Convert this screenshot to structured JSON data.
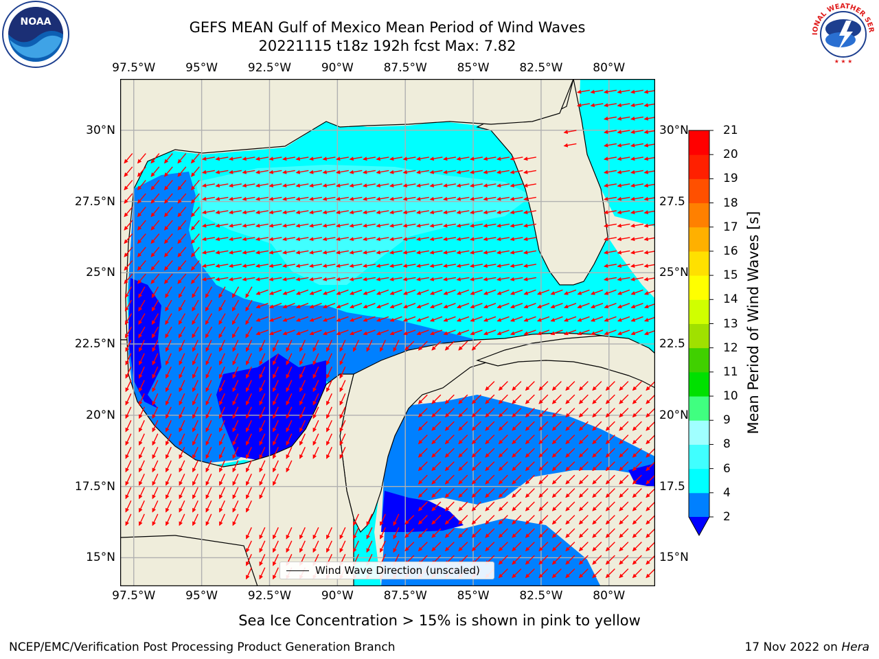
{
  "title": {
    "line1": "GEFS MEAN Gulf of Mexico Mean Period of Wind Waves",
    "line2": "20221115 t18z 192h fcst   Max: 7.82"
  },
  "logos": {
    "left": {
      "name": "noaa-logo",
      "text": "NOAA"
    },
    "right": {
      "name": "nws-logo",
      "text": "NATIONAL WEATHER SERVICE"
    }
  },
  "axes": {
    "lon_ticks": [
      "97.5°W",
      "95°W",
      "92.5°W",
      "90°W",
      "87.5°W",
      "85°W",
      "82.5°W",
      "80°W"
    ],
    "lon_values": [
      -97.5,
      -95,
      -92.5,
      -90,
      -87.5,
      -85,
      -82.5,
      -80
    ],
    "lat_ticks_left": [
      "30°N",
      "27.5°N",
      "25°N",
      "22.5°N",
      "20°N",
      "17.5°N",
      "15°N"
    ],
    "lat_ticks_right": [
      "30°N",
      "27.5",
      "25°N",
      "22.5",
      "20°N",
      "17.5",
      "15°N"
    ],
    "lat_values": [
      30,
      27.5,
      25,
      22.5,
      20,
      17.5,
      15
    ],
    "lon_range": [
      -98,
      -78.3
    ],
    "lat_range": [
      14,
      31.8
    ],
    "grid": true
  },
  "legend": {
    "label": "Wind Wave Direction (unscaled)"
  },
  "colorbar": {
    "title": "Mean Period of Wind Waves [s]",
    "ticks": [
      "21",
      "20",
      "19",
      "18",
      "17",
      "16",
      "15",
      "14",
      "13",
      "12",
      "11",
      "10",
      "9",
      "8",
      "6",
      "4",
      "2"
    ],
    "colors": [
      "#0000ff",
      "#0080ff",
      "#00ffff",
      "#40ffff",
      "#a0ffff",
      "#40ff80",
      "#00e000",
      "#40d000",
      "#a0e000",
      "#d0ff00",
      "#ffff00",
      "#ffe000",
      "#ffb000",
      "#ff8000",
      "#ff5000",
      "#ff2000",
      "#ff0000"
    ]
  },
  "colors": {
    "land": "#efeddb",
    "open_sea": "#00ffff",
    "light_sea": "#40ffff",
    "mid_sea": "#0080ff",
    "deep_sea": "#0000ff",
    "arrow": "#ff0000",
    "grid": "#b0b0b0"
  },
  "footer": {
    "note": "Sea Ice Concentration > 15% is shown in pink to yellow",
    "left": "NCEP/EMC/Verification Post Processing Product Generation Branch",
    "right_prefix": "17 Nov 2022 on ",
    "right_machine": "Hera"
  }
}
